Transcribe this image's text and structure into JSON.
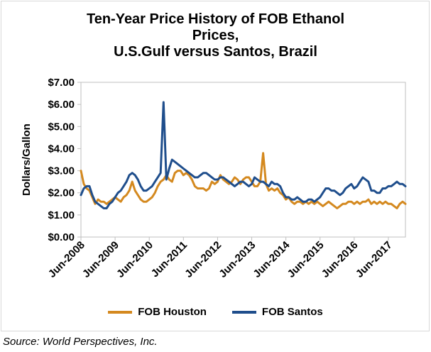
{
  "chart_data": {
    "type": "line",
    "title_lines": [
      "Ten-Year Price History of FOB Ethanol",
      "Prices,",
      "U.S.Gulf versus Santos, Brazil"
    ],
    "ylabel": "Dollars/Gallon",
    "xlabel": "",
    "ylim": [
      0,
      7
    ],
    "yticks": [
      "$0.00",
      "$1.00",
      "$2.00",
      "$3.00",
      "$4.00",
      "$5.00",
      "$6.00",
      "$7.00"
    ],
    "xlim": [
      "2008-06",
      "2017-12"
    ],
    "xticks": [
      "Jun-2008",
      "Jun-2009",
      "Jun-2010",
      "Jun-2011",
      "Jun-2012",
      "Jun-2013",
      "Jun-2014",
      "Jun-2015",
      "Jun-2016",
      "Jun-2017"
    ],
    "grid": false,
    "legend_position": "bottom",
    "series": [
      {
        "name": "FOB Houston",
        "color": "#d4891f",
        "x": [
          "2008-06",
          "2008-07",
          "2008-08",
          "2008-09",
          "2008-10",
          "2008-11",
          "2008-12",
          "2009-01",
          "2009-02",
          "2009-03",
          "2009-04",
          "2009-05",
          "2009-06",
          "2009-07",
          "2009-08",
          "2009-09",
          "2009-10",
          "2009-11",
          "2009-12",
          "2010-01",
          "2010-02",
          "2010-03",
          "2010-04",
          "2010-05",
          "2010-06",
          "2010-07",
          "2010-08",
          "2010-09",
          "2010-10",
          "2010-11",
          "2010-12",
          "2011-01",
          "2011-02",
          "2011-03",
          "2011-04",
          "2011-05",
          "2011-06",
          "2011-07",
          "2011-08",
          "2011-09",
          "2011-10",
          "2011-11",
          "2011-12",
          "2012-01",
          "2012-02",
          "2012-03",
          "2012-04",
          "2012-05",
          "2012-06",
          "2012-07",
          "2012-08",
          "2012-09",
          "2012-10",
          "2012-11",
          "2012-12",
          "2013-01",
          "2013-02",
          "2013-03",
          "2013-04",
          "2013-05",
          "2013-06",
          "2013-07",
          "2013-08",
          "2013-09",
          "2013-10",
          "2013-11",
          "2013-12",
          "2014-01",
          "2014-02",
          "2014-03",
          "2014-04",
          "2014-05",
          "2014-06",
          "2014-07",
          "2014-08",
          "2014-09",
          "2014-10",
          "2014-11",
          "2014-12",
          "2015-01",
          "2015-02",
          "2015-03",
          "2015-04",
          "2015-05",
          "2015-06",
          "2015-07",
          "2015-08",
          "2015-09",
          "2015-10",
          "2015-11",
          "2015-12",
          "2016-01",
          "2016-02",
          "2016-03",
          "2016-04",
          "2016-05",
          "2016-06",
          "2016-07",
          "2016-08",
          "2016-09",
          "2016-10",
          "2016-11",
          "2016-12",
          "2017-01",
          "2017-02",
          "2017-03",
          "2017-04",
          "2017-05",
          "2017-06",
          "2017-07",
          "2017-08",
          "2017-09",
          "2017-10",
          "2017-11",
          "2017-12"
        ],
        "values": [
          3.0,
          2.4,
          2.2,
          2.1,
          1.8,
          1.5,
          1.7,
          1.6,
          1.6,
          1.5,
          1.6,
          1.7,
          1.8,
          1.7,
          1.6,
          1.8,
          1.9,
          2.1,
          2.5,
          2.1,
          1.9,
          1.7,
          1.6,
          1.6,
          1.7,
          1.8,
          2.0,
          2.3,
          2.5,
          2.6,
          2.8,
          2.6,
          2.5,
          2.9,
          3.0,
          3.0,
          2.8,
          2.9,
          2.8,
          2.6,
          2.3,
          2.2,
          2.2,
          2.2,
          2.1,
          2.2,
          2.5,
          2.4,
          2.5,
          2.8,
          2.6,
          2.5,
          2.4,
          2.5,
          2.7,
          2.6,
          2.4,
          2.6,
          2.7,
          2.7,
          2.5,
          2.3,
          2.3,
          2.5,
          3.8,
          2.4,
          2.1,
          2.2,
          2.1,
          2.2,
          2.0,
          1.9,
          1.7,
          1.8,
          1.6,
          1.5,
          1.6,
          1.6,
          1.5,
          1.6,
          1.5,
          1.6,
          1.5,
          1.6,
          1.5,
          1.4,
          1.5,
          1.6,
          1.5,
          1.4,
          1.3,
          1.4,
          1.5,
          1.5,
          1.6,
          1.6,
          1.5,
          1.6,
          1.5,
          1.6,
          1.6,
          1.7,
          1.5,
          1.6,
          1.5,
          1.6,
          1.5,
          1.6,
          1.5,
          1.5,
          1.4,
          1.3,
          1.5,
          1.6,
          1.5
        ]
      },
      {
        "name": "FOB Santos",
        "color": "#1f4e8c",
        "x": [
          "2008-06",
          "2008-07",
          "2008-08",
          "2008-09",
          "2008-10",
          "2008-11",
          "2008-12",
          "2009-01",
          "2009-02",
          "2009-03",
          "2009-04",
          "2009-05",
          "2009-06",
          "2009-07",
          "2009-08",
          "2009-09",
          "2009-10",
          "2009-11",
          "2009-12",
          "2010-01",
          "2010-02",
          "2010-03",
          "2010-04",
          "2010-05",
          "2010-06",
          "2010-07",
          "2010-08",
          "2010-09",
          "2010-10",
          "2010-11",
          "2010-12",
          "2011-01",
          "2011-02",
          "2011-03",
          "2011-04",
          "2011-05",
          "2011-06",
          "2011-07",
          "2011-08",
          "2011-09",
          "2011-10",
          "2011-11",
          "2011-12",
          "2012-01",
          "2012-02",
          "2012-03",
          "2012-04",
          "2012-05",
          "2012-06",
          "2012-07",
          "2012-08",
          "2012-09",
          "2012-10",
          "2012-11",
          "2012-12",
          "2013-01",
          "2013-02",
          "2013-03",
          "2013-04",
          "2013-05",
          "2013-06",
          "2013-07",
          "2013-08",
          "2013-09",
          "2013-10",
          "2013-11",
          "2013-12",
          "2014-01",
          "2014-02",
          "2014-03",
          "2014-04",
          "2014-05",
          "2014-06",
          "2014-07",
          "2014-08",
          "2014-09",
          "2014-10",
          "2014-11",
          "2014-12",
          "2015-01",
          "2015-02",
          "2015-03",
          "2015-04",
          "2015-05",
          "2015-06",
          "2015-07",
          "2015-08",
          "2015-09",
          "2015-10",
          "2015-11",
          "2015-12",
          "2016-01",
          "2016-02",
          "2016-03",
          "2016-04",
          "2016-05",
          "2016-06",
          "2016-07",
          "2016-08",
          "2016-09",
          "2016-10",
          "2016-11",
          "2016-12",
          "2017-01",
          "2017-02",
          "2017-03",
          "2017-04",
          "2017-05",
          "2017-06",
          "2017-07",
          "2017-08",
          "2017-09",
          "2017-10",
          "2017-11",
          "2017-12"
        ],
        "values": [
          1.9,
          2.2,
          2.3,
          2.3,
          1.9,
          1.6,
          1.5,
          1.4,
          1.3,
          1.3,
          1.5,
          1.6,
          1.8,
          2.0,
          2.1,
          2.3,
          2.5,
          2.8,
          2.9,
          2.8,
          2.6,
          2.3,
          2.1,
          2.1,
          2.2,
          2.3,
          2.5,
          2.7,
          2.9,
          6.1,
          2.6,
          3.1,
          3.5,
          3.4,
          3.3,
          3.2,
          3.1,
          3.0,
          2.9,
          2.8,
          2.7,
          2.7,
          2.8,
          2.9,
          2.9,
          2.8,
          2.7,
          2.6,
          2.6,
          2.7,
          2.7,
          2.6,
          2.5,
          2.4,
          2.3,
          2.4,
          2.5,
          2.5,
          2.4,
          2.3,
          2.4,
          2.7,
          2.6,
          2.5,
          2.5,
          2.4,
          2.3,
          2.5,
          2.4,
          2.4,
          2.3,
          2.0,
          1.8,
          1.8,
          1.7,
          1.7,
          1.8,
          1.7,
          1.6,
          1.6,
          1.7,
          1.7,
          1.6,
          1.7,
          1.8,
          2.0,
          2.2,
          2.2,
          2.1,
          2.1,
          2.0,
          1.9,
          2.0,
          2.2,
          2.3,
          2.4,
          2.2,
          2.3,
          2.5,
          2.7,
          2.6,
          2.5,
          2.1,
          2.1,
          2.0,
          2.0,
          2.2,
          2.2,
          2.3,
          2.3,
          2.4,
          2.5,
          2.4,
          2.4,
          2.3
        ]
      }
    ]
  },
  "source": "Source: World Perspectives, Inc."
}
